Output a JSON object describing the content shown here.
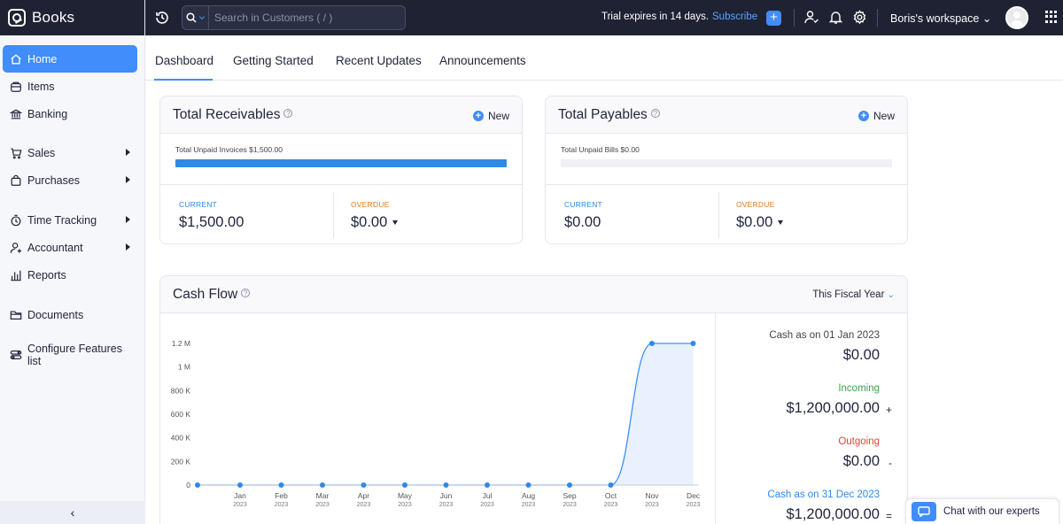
{
  "app": {
    "name": "Books"
  },
  "sidebar": {
    "items": [
      {
        "label": "Home",
        "icon": "home-icon",
        "active": true
      },
      {
        "label": "Items",
        "icon": "items-icon"
      },
      {
        "label": "Banking",
        "icon": "bank-icon"
      },
      {
        "label": "Sales",
        "icon": "cart-icon",
        "has_submenu": true
      },
      {
        "label": "Purchases",
        "icon": "bag-icon",
        "has_submenu": true
      },
      {
        "label": "Time Tracking",
        "icon": "timer-icon",
        "has_submenu": true
      },
      {
        "label": "Accountant",
        "icon": "accountant-icon",
        "has_submenu": true
      },
      {
        "label": "Reports",
        "icon": "reports-icon"
      },
      {
        "label": "Documents",
        "icon": "folder-icon"
      },
      {
        "label": "Configure Features list",
        "icon": "configure-icon"
      }
    ],
    "collapse_glyph": "‹"
  },
  "topbar": {
    "search_placeholder": "Search in Customers ( / )",
    "trial_text": "Trial expires in 14 days.",
    "subscribe_label": "Subscribe",
    "plus_glyph": "+",
    "workspace_label": "Boris's workspace",
    "workspace_chevron": "⌄"
  },
  "tabs": [
    {
      "label": "Dashboard",
      "active": true
    },
    {
      "label": "Getting Started"
    },
    {
      "label": "Recent Updates"
    },
    {
      "label": "Announcements"
    }
  ],
  "receivables": {
    "title": "Total Receivables",
    "new_label": "New",
    "unpaid_text": "Total Unpaid Invoices $1,500.00",
    "progress_fraction": 1.0,
    "current_label": "CURRENT",
    "current_amount": "$1,500.00",
    "overdue_label": "OVERDUE",
    "overdue_amount": "$0.00"
  },
  "payables": {
    "title": "Total Payables",
    "new_label": "New",
    "unpaid_text": "Total Unpaid Bills $0.00",
    "progress_fraction": 0.0,
    "current_label": "CURRENT",
    "current_amount": "$0.00",
    "overdue_label": "OVERDUE",
    "overdue_amount": "$0.00"
  },
  "cashflow": {
    "title": "Cash Flow",
    "period_label": "This Fiscal Year",
    "opening_label": "Cash as on 01 Jan 2023",
    "opening_amount": "$0.00",
    "incoming_label": "Incoming",
    "incoming_amount": "$1,200,000.00",
    "incoming_op": "+",
    "outgoing_label": "Outgoing",
    "outgoing_amount": "$0.00",
    "outgoing_op": "-",
    "closing_label": "Cash as on 31 Dec 2023",
    "closing_amount": "$1,200,000.00",
    "closing_op": "="
  },
  "chart_data": {
    "type": "area",
    "categories": [
      "Jan",
      "Feb",
      "Mar",
      "Apr",
      "May",
      "Jun",
      "Jul",
      "Aug",
      "Sep",
      "Oct",
      "Nov",
      "Dec"
    ],
    "year_label": "2023",
    "values": [
      0,
      0,
      0,
      0,
      0,
      0,
      0,
      0,
      0,
      0,
      1200000,
      1200000
    ],
    "extra_start_point": 0,
    "y_ticks": [
      0,
      200000,
      400000,
      600000,
      800000,
      1000000,
      1200000
    ],
    "y_tick_labels": [
      "0",
      "200 K",
      "400 K",
      "600 K",
      "800 K",
      "1 M",
      "1.2 M"
    ],
    "ylim": [
      0,
      1200000
    ],
    "colors": {
      "line": "#408dfb",
      "fill": "#e8f1fd",
      "point": "#2f89e8"
    }
  },
  "chat": {
    "label": "Chat with our experts"
  },
  "colors": {
    "accent": "#408dfb",
    "nav_bg": "#1f2233",
    "overdue": "#e67a1a",
    "incoming": "#3aa24d",
    "outgoing": "#d9483b",
    "closing": "#2f89e8"
  }
}
